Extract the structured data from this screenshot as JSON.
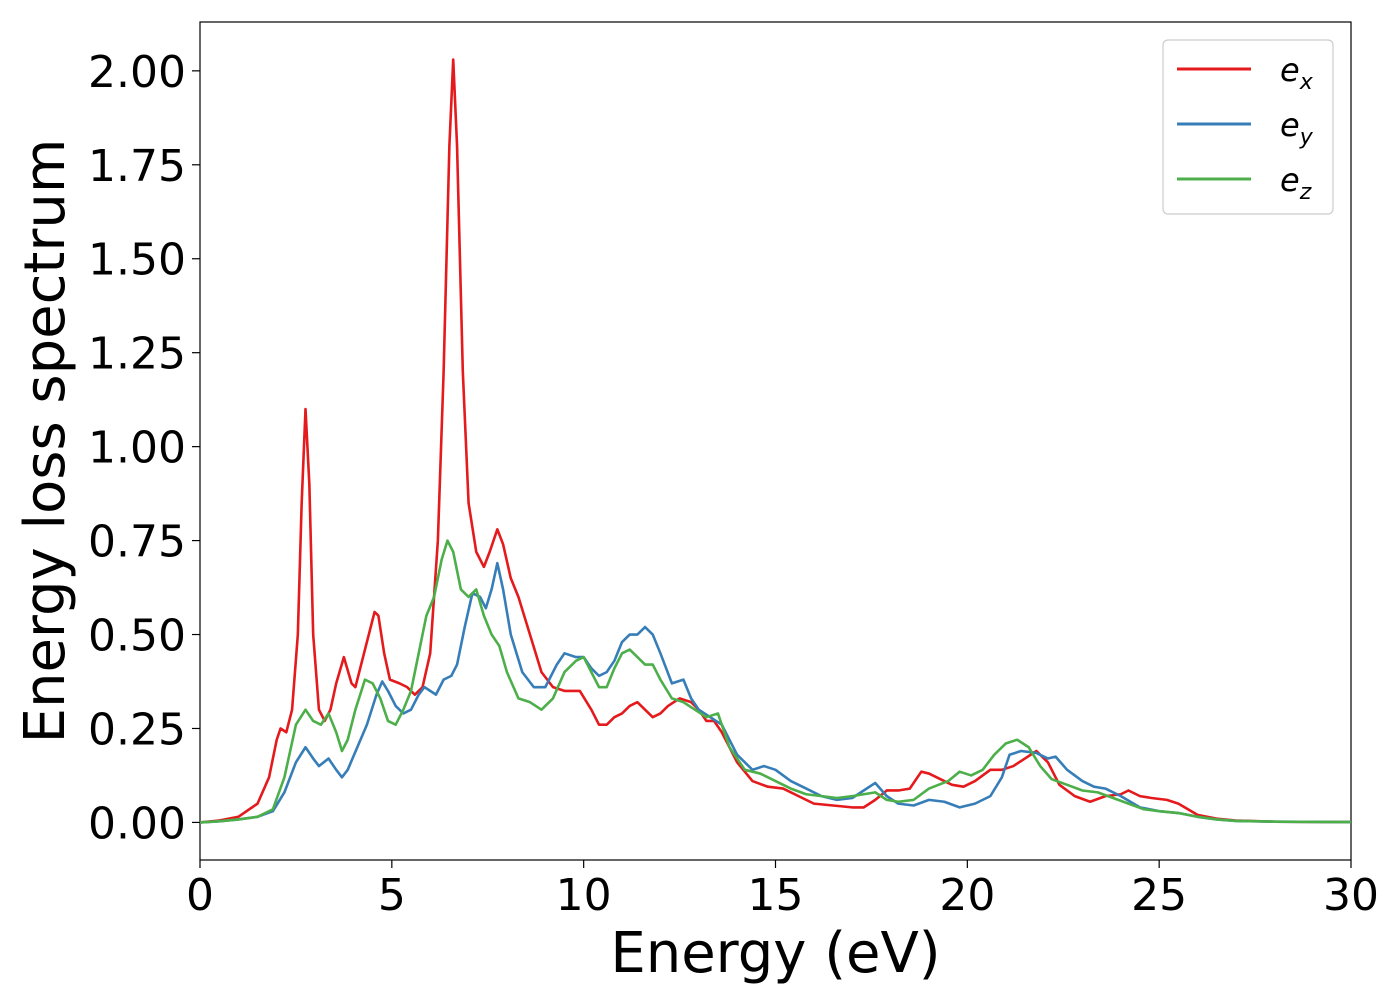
{
  "chart_data": {
    "type": "line",
    "title": "",
    "xlabel": "Energy (eV)",
    "ylabel": "Energy loss spectrum",
    "xlim": [
      0,
      30
    ],
    "ylim": [
      -0.1,
      2.13
    ],
    "xticks": [
      0,
      5,
      10,
      15,
      20,
      25,
      30
    ],
    "xtick_labels": [
      "0",
      "5",
      "10",
      "15",
      "20",
      "25",
      "30"
    ],
    "yticks": [
      0,
      0.25,
      0.5,
      0.75,
      1.0,
      1.25,
      1.5,
      1.75,
      2.0
    ],
    "ytick_labels": [
      "0.00",
      "0.25",
      "0.50",
      "0.75",
      "1.00",
      "1.25",
      "1.50",
      "1.75",
      "2.00"
    ],
    "grid": false,
    "legend_position": "top-right",
    "series": [
      {
        "name": "e_x",
        "base": "e",
        "sub": "x",
        "color": "#e41a1c",
        "points": [
          [
            0,
            0
          ],
          [
            0.5,
            0.005
          ],
          [
            1,
            0.015
          ],
          [
            1.5,
            0.05
          ],
          [
            1.8,
            0.12
          ],
          [
            2.0,
            0.22
          ],
          [
            2.1,
            0.25
          ],
          [
            2.25,
            0.24
          ],
          [
            2.4,
            0.3
          ],
          [
            2.55,
            0.5
          ],
          [
            2.65,
            0.85
          ],
          [
            2.75,
            1.1
          ],
          [
            2.85,
            0.9
          ],
          [
            2.95,
            0.5
          ],
          [
            3.1,
            0.3
          ],
          [
            3.25,
            0.27
          ],
          [
            3.4,
            0.3
          ],
          [
            3.55,
            0.37
          ],
          [
            3.75,
            0.44
          ],
          [
            3.95,
            0.37
          ],
          [
            4.05,
            0.36
          ],
          [
            4.2,
            0.42
          ],
          [
            4.4,
            0.5
          ],
          [
            4.55,
            0.56
          ],
          [
            4.65,
            0.55
          ],
          [
            4.8,
            0.45
          ],
          [
            4.95,
            0.38
          ],
          [
            5.2,
            0.37
          ],
          [
            5.4,
            0.36
          ],
          [
            5.6,
            0.34
          ],
          [
            5.8,
            0.36
          ],
          [
            6.0,
            0.45
          ],
          [
            6.2,
            0.75
          ],
          [
            6.35,
            1.2
          ],
          [
            6.5,
            1.8
          ],
          [
            6.6,
            2.03
          ],
          [
            6.7,
            1.8
          ],
          [
            6.85,
            1.2
          ],
          [
            7.0,
            0.85
          ],
          [
            7.2,
            0.72
          ],
          [
            7.4,
            0.68
          ],
          [
            7.55,
            0.72
          ],
          [
            7.75,
            0.78
          ],
          [
            7.9,
            0.74
          ],
          [
            8.1,
            0.65
          ],
          [
            8.3,
            0.6
          ],
          [
            8.6,
            0.5
          ],
          [
            8.9,
            0.4
          ],
          [
            9.2,
            0.36
          ],
          [
            9.5,
            0.35
          ],
          [
            9.9,
            0.35
          ],
          [
            10.2,
            0.3
          ],
          [
            10.4,
            0.26
          ],
          [
            10.6,
            0.26
          ],
          [
            10.8,
            0.28
          ],
          [
            11.0,
            0.29
          ],
          [
            11.2,
            0.31
          ],
          [
            11.4,
            0.32
          ],
          [
            11.6,
            0.3
          ],
          [
            11.8,
            0.28
          ],
          [
            12.0,
            0.29
          ],
          [
            12.2,
            0.31
          ],
          [
            12.5,
            0.33
          ],
          [
            12.8,
            0.32
          ],
          [
            13.0,
            0.3
          ],
          [
            13.2,
            0.27
          ],
          [
            13.4,
            0.27
          ],
          [
            13.6,
            0.24
          ],
          [
            14.0,
            0.16
          ],
          [
            14.4,
            0.11
          ],
          [
            14.8,
            0.095
          ],
          [
            15.2,
            0.09
          ],
          [
            15.6,
            0.07
          ],
          [
            16.0,
            0.05
          ],
          [
            16.5,
            0.045
          ],
          [
            17.0,
            0.04
          ],
          [
            17.3,
            0.04
          ],
          [
            17.6,
            0.06
          ],
          [
            17.9,
            0.085
          ],
          [
            18.2,
            0.085
          ],
          [
            18.5,
            0.09
          ],
          [
            18.8,
            0.135
          ],
          [
            19.0,
            0.13
          ],
          [
            19.3,
            0.115
          ],
          [
            19.6,
            0.1
          ],
          [
            19.9,
            0.095
          ],
          [
            20.2,
            0.11
          ],
          [
            20.6,
            0.14
          ],
          [
            20.9,
            0.14
          ],
          [
            21.2,
            0.15
          ],
          [
            21.5,
            0.17
          ],
          [
            21.8,
            0.19
          ],
          [
            22.1,
            0.16
          ],
          [
            22.4,
            0.1
          ],
          [
            22.8,
            0.07
          ],
          [
            23.2,
            0.055
          ],
          [
            23.6,
            0.07
          ],
          [
            24.0,
            0.075
          ],
          [
            24.2,
            0.085
          ],
          [
            24.5,
            0.07
          ],
          [
            24.8,
            0.065
          ],
          [
            25.2,
            0.06
          ],
          [
            25.5,
            0.05
          ],
          [
            26.0,
            0.02
          ],
          [
            26.5,
            0.01
          ],
          [
            27.0,
            0.005
          ],
          [
            28,
            0.002
          ],
          [
            30,
            0.001
          ]
        ]
      },
      {
        "name": "e_y",
        "base": "e",
        "sub": "y",
        "color": "#377eb8",
        "points": [
          [
            0,
            0
          ],
          [
            0.5,
            0.003
          ],
          [
            1,
            0.008
          ],
          [
            1.5,
            0.015
          ],
          [
            1.9,
            0.03
          ],
          [
            2.2,
            0.08
          ],
          [
            2.5,
            0.16
          ],
          [
            2.75,
            0.2
          ],
          [
            2.95,
            0.17
          ],
          [
            3.1,
            0.15
          ],
          [
            3.35,
            0.17
          ],
          [
            3.55,
            0.14
          ],
          [
            3.7,
            0.12
          ],
          [
            3.85,
            0.14
          ],
          [
            4.1,
            0.2
          ],
          [
            4.35,
            0.26
          ],
          [
            4.6,
            0.34
          ],
          [
            4.75,
            0.375
          ],
          [
            4.9,
            0.35
          ],
          [
            5.1,
            0.31
          ],
          [
            5.3,
            0.29
          ],
          [
            5.5,
            0.3
          ],
          [
            5.7,
            0.34
          ],
          [
            5.85,
            0.36
          ],
          [
            6.0,
            0.35
          ],
          [
            6.15,
            0.34
          ],
          [
            6.35,
            0.38
          ],
          [
            6.55,
            0.39
          ],
          [
            6.7,
            0.42
          ],
          [
            6.9,
            0.52
          ],
          [
            7.1,
            0.61
          ],
          [
            7.3,
            0.6
          ],
          [
            7.45,
            0.57
          ],
          [
            7.6,
            0.62
          ],
          [
            7.75,
            0.69
          ],
          [
            7.9,
            0.62
          ],
          [
            8.1,
            0.5
          ],
          [
            8.4,
            0.4
          ],
          [
            8.7,
            0.36
          ],
          [
            9.0,
            0.36
          ],
          [
            9.3,
            0.42
          ],
          [
            9.5,
            0.45
          ],
          [
            9.8,
            0.44
          ],
          [
            10.0,
            0.44
          ],
          [
            10.2,
            0.41
          ],
          [
            10.4,
            0.39
          ],
          [
            10.6,
            0.4
          ],
          [
            10.8,
            0.43
          ],
          [
            11.0,
            0.48
          ],
          [
            11.2,
            0.5
          ],
          [
            11.4,
            0.5
          ],
          [
            11.6,
            0.52
          ],
          [
            11.8,
            0.5
          ],
          [
            12.0,
            0.45
          ],
          [
            12.3,
            0.37
          ],
          [
            12.6,
            0.38
          ],
          [
            12.8,
            0.33
          ],
          [
            13.0,
            0.3
          ],
          [
            13.3,
            0.28
          ],
          [
            13.6,
            0.26
          ],
          [
            14.0,
            0.18
          ],
          [
            14.4,
            0.14
          ],
          [
            14.7,
            0.15
          ],
          [
            15.0,
            0.14
          ],
          [
            15.4,
            0.11
          ],
          [
            15.8,
            0.09
          ],
          [
            16.2,
            0.07
          ],
          [
            16.6,
            0.06
          ],
          [
            17.0,
            0.065
          ],
          [
            17.3,
            0.085
          ],
          [
            17.6,
            0.105
          ],
          [
            17.9,
            0.07
          ],
          [
            18.2,
            0.05
          ],
          [
            18.6,
            0.045
          ],
          [
            19.0,
            0.06
          ],
          [
            19.4,
            0.055
          ],
          [
            19.8,
            0.04
          ],
          [
            20.2,
            0.05
          ],
          [
            20.6,
            0.07
          ],
          [
            20.9,
            0.12
          ],
          [
            21.1,
            0.18
          ],
          [
            21.4,
            0.19
          ],
          [
            21.8,
            0.185
          ],
          [
            22.1,
            0.17
          ],
          [
            22.3,
            0.175
          ],
          [
            22.6,
            0.14
          ],
          [
            23.0,
            0.11
          ],
          [
            23.3,
            0.095
          ],
          [
            23.6,
            0.09
          ],
          [
            24.0,
            0.07
          ],
          [
            24.5,
            0.04
          ],
          [
            25.0,
            0.03
          ],
          [
            25.5,
            0.025
          ],
          [
            26.0,
            0.015
          ],
          [
            26.5,
            0.008
          ],
          [
            27.0,
            0.004
          ],
          [
            28,
            0.002
          ],
          [
            30,
            0.001
          ]
        ]
      },
      {
        "name": "e_z",
        "base": "e",
        "sub": "z",
        "color": "#4daf4a",
        "points": [
          [
            0,
            0
          ],
          [
            0.5,
            0.003
          ],
          [
            1,
            0.008
          ],
          [
            1.5,
            0.015
          ],
          [
            1.9,
            0.035
          ],
          [
            2.2,
            0.12
          ],
          [
            2.5,
            0.26
          ],
          [
            2.75,
            0.3
          ],
          [
            2.95,
            0.27
          ],
          [
            3.15,
            0.26
          ],
          [
            3.35,
            0.29
          ],
          [
            3.55,
            0.24
          ],
          [
            3.7,
            0.19
          ],
          [
            3.85,
            0.22
          ],
          [
            4.05,
            0.3
          ],
          [
            4.3,
            0.38
          ],
          [
            4.5,
            0.37
          ],
          [
            4.7,
            0.33
          ],
          [
            4.9,
            0.27
          ],
          [
            5.1,
            0.26
          ],
          [
            5.3,
            0.3
          ],
          [
            5.5,
            0.35
          ],
          [
            5.7,
            0.45
          ],
          [
            5.9,
            0.55
          ],
          [
            6.1,
            0.6
          ],
          [
            6.3,
            0.7
          ],
          [
            6.45,
            0.75
          ],
          [
            6.6,
            0.72
          ],
          [
            6.8,
            0.62
          ],
          [
            7.0,
            0.6
          ],
          [
            7.2,
            0.62
          ],
          [
            7.4,
            0.55
          ],
          [
            7.6,
            0.5
          ],
          [
            7.8,
            0.47
          ],
          [
            8.0,
            0.4
          ],
          [
            8.3,
            0.33
          ],
          [
            8.6,
            0.32
          ],
          [
            8.9,
            0.3
          ],
          [
            9.2,
            0.33
          ],
          [
            9.5,
            0.4
          ],
          [
            9.8,
            0.43
          ],
          [
            10.0,
            0.44
          ],
          [
            10.2,
            0.4
          ],
          [
            10.4,
            0.36
          ],
          [
            10.6,
            0.36
          ],
          [
            10.8,
            0.41
          ],
          [
            11.0,
            0.45
          ],
          [
            11.2,
            0.46
          ],
          [
            11.4,
            0.44
          ],
          [
            11.6,
            0.42
          ],
          [
            11.8,
            0.42
          ],
          [
            12.0,
            0.38
          ],
          [
            12.3,
            0.33
          ],
          [
            12.6,
            0.32
          ],
          [
            12.9,
            0.3
          ],
          [
            13.2,
            0.28
          ],
          [
            13.5,
            0.29
          ],
          [
            13.8,
            0.2
          ],
          [
            14.2,
            0.14
          ],
          [
            14.6,
            0.13
          ],
          [
            15.0,
            0.11
          ],
          [
            15.4,
            0.09
          ],
          [
            15.8,
            0.075
          ],
          [
            16.2,
            0.07
          ],
          [
            16.6,
            0.065
          ],
          [
            17.0,
            0.07
          ],
          [
            17.3,
            0.075
          ],
          [
            17.6,
            0.08
          ],
          [
            17.9,
            0.06
          ],
          [
            18.2,
            0.055
          ],
          [
            18.6,
            0.06
          ],
          [
            19.0,
            0.09
          ],
          [
            19.5,
            0.11
          ],
          [
            19.8,
            0.135
          ],
          [
            20.1,
            0.125
          ],
          [
            20.4,
            0.14
          ],
          [
            20.7,
            0.18
          ],
          [
            21.0,
            0.21
          ],
          [
            21.3,
            0.22
          ],
          [
            21.6,
            0.2
          ],
          [
            21.9,
            0.15
          ],
          [
            22.2,
            0.115
          ],
          [
            22.6,
            0.1
          ],
          [
            23.0,
            0.085
          ],
          [
            23.4,
            0.08
          ],
          [
            23.8,
            0.065
          ],
          [
            24.2,
            0.05
          ],
          [
            24.6,
            0.035
          ],
          [
            25.0,
            0.03
          ],
          [
            25.5,
            0.025
          ],
          [
            26.0,
            0.015
          ],
          [
            26.5,
            0.008
          ],
          [
            27.0,
            0.004
          ],
          [
            28,
            0.002
          ],
          [
            30,
            0.001
          ]
        ]
      }
    ]
  }
}
